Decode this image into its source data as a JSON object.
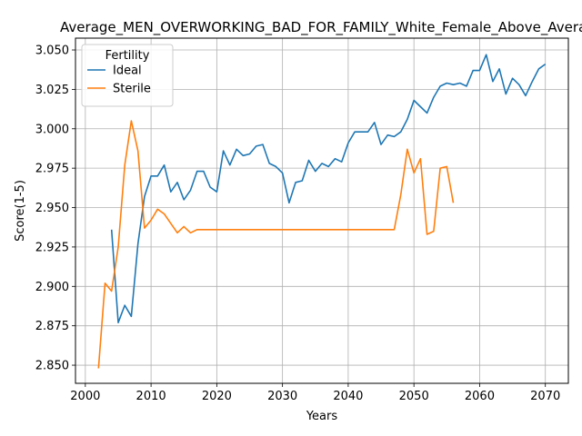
{
  "chart_data": {
    "type": "line",
    "title": "Average_MEN_OVERWORKING_BAD_FOR_FAMILY_White_Female_Above_Average",
    "xlabel": "Years",
    "ylabel": "Score(1-5)",
    "xlim": [
      1998.5,
      2073.5
    ],
    "ylim": [
      2.8385,
      3.0575
    ],
    "xticks": [
      2000,
      2010,
      2020,
      2030,
      2040,
      2050,
      2060,
      2070
    ],
    "yticks": [
      2.85,
      2.875,
      2.9,
      2.925,
      2.95,
      2.975,
      3.0,
      3.025,
      3.05
    ],
    "grid": true,
    "legend": {
      "title": "Fertility",
      "placement": "upper-left"
    },
    "series": [
      {
        "name": "Ideal",
        "color": "#1f77b4",
        "x": [
          2004,
          2005,
          2006,
          2007,
          2008,
          2009,
          2010,
          2011,
          2012,
          2013,
          2014,
          2015,
          2016,
          2017,
          2018,
          2019,
          2020,
          2021,
          2022,
          2023,
          2024,
          2025,
          2026,
          2027,
          2028,
          2029,
          2030,
          2031,
          2032,
          2033,
          2034,
          2035,
          2036,
          2037,
          2038,
          2039,
          2040,
          2041,
          2042,
          2043,
          2044,
          2045,
          2046,
          2047,
          2048,
          2049,
          2050,
          2051,
          2052,
          2053,
          2054,
          2055,
          2056,
          2057,
          2058,
          2059,
          2060,
          2061,
          2062,
          2063,
          2064,
          2065,
          2066,
          2067,
          2068,
          2069,
          2070
        ],
        "y": [
          2.936,
          2.877,
          2.888,
          2.881,
          2.927,
          2.957,
          2.97,
          2.97,
          2.977,
          2.96,
          2.966,
          2.955,
          2.961,
          2.973,
          2.973,
          2.963,
          2.96,
          2.986,
          2.977,
          2.987,
          2.983,
          2.984,
          2.989,
          2.99,
          2.978,
          2.976,
          2.972,
          2.953,
          2.966,
          2.967,
          2.98,
          2.973,
          2.978,
          2.976,
          2.981,
          2.979,
          2.991,
          2.998,
          2.998,
          2.998,
          3.004,
          2.99,
          2.996,
          2.995,
          2.998,
          3.006,
          3.018,
          3.014,
          3.01,
          3.02,
          3.027,
          3.029,
          3.028,
          3.029,
          3.027,
          3.037,
          3.037,
          3.047,
          3.03,
          3.038,
          3.022,
          3.032,
          3.028,
          3.021,
          3.03,
          3.038,
          3.041
        ]
      },
      {
        "name": "Sterile",
        "color": "#ff7f0e",
        "x": [
          2002,
          2003,
          2004,
          2005,
          2006,
          2007,
          2008,
          2009,
          2010,
          2011,
          2012,
          2013,
          2014,
          2015,
          2016,
          2017,
          2018,
          2019,
          2020,
          2021,
          2022,
          2023,
          2024,
          2025,
          2026,
          2027,
          2028,
          2029,
          2030,
          2031,
          2032,
          2033,
          2034,
          2035,
          2036,
          2037,
          2038,
          2039,
          2040,
          2041,
          2042,
          2043,
          2044,
          2045,
          2046,
          2047,
          2048,
          2049,
          2050,
          2051,
          2052,
          2053,
          2054,
          2055,
          2056
        ],
        "y": [
          2.848,
          2.902,
          2.897,
          2.925,
          2.977,
          3.005,
          2.986,
          2.937,
          2.942,
          2.949,
          2.946,
          2.94,
          2.934,
          2.938,
          2.934,
          2.936,
          2.936,
          2.936,
          2.936,
          2.936,
          2.936,
          2.936,
          2.936,
          2.936,
          2.936,
          2.936,
          2.936,
          2.936,
          2.936,
          2.936,
          2.936,
          2.936,
          2.936,
          2.936,
          2.936,
          2.936,
          2.936,
          2.936,
          2.936,
          2.936,
          2.936,
          2.936,
          2.936,
          2.936,
          2.936,
          2.936,
          2.958,
          2.987,
          2.972,
          2.981,
          2.933,
          2.935,
          2.975,
          2.976,
          2.953
        ]
      }
    ]
  }
}
